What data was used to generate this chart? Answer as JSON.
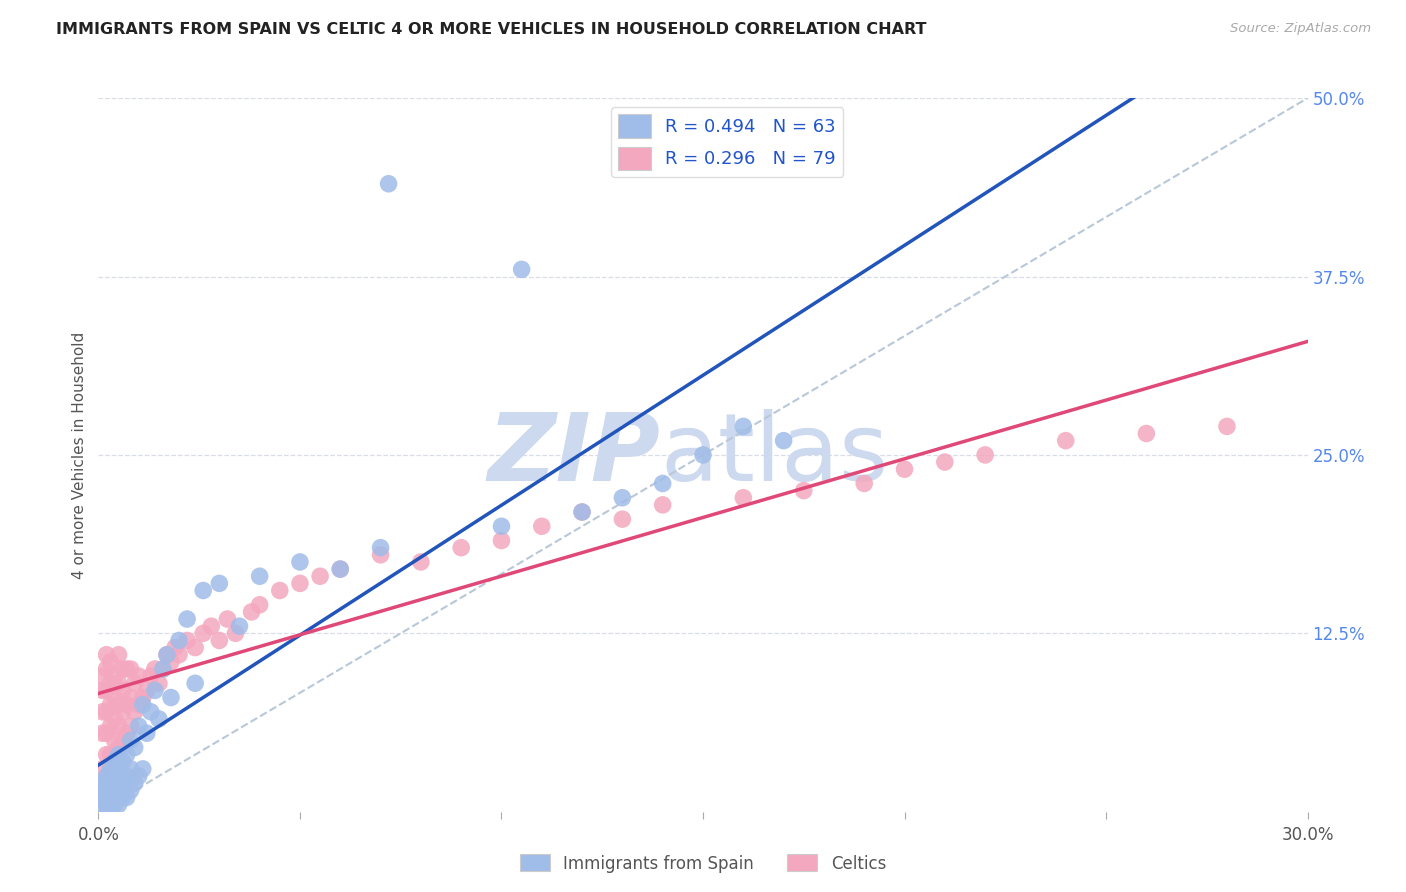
{
  "title": "IMMIGRANTS FROM SPAIN VS CELTIC 4 OR MORE VEHICLES IN HOUSEHOLD CORRELATION CHART",
  "source": "Source: ZipAtlas.com",
  "ylabel": "4 or more Vehicles in Household",
  "xlim": [
    0.0,
    0.3
  ],
  "ylim": [
    0.0,
    0.5
  ],
  "legend_label_blue": "Immigrants from Spain",
  "legend_label_pink": "Celtics",
  "blue_color": "#a0bce8",
  "pink_color": "#f4a8bf",
  "blue_line_color": "#2255bb",
  "pink_line_color": "#e04878",
  "dashed_line_color": "#b8c8d8",
  "right_tick_color": "#5588ee",
  "grid_color": "#d8dde8",
  "spain_x": [
    0.001,
    0.001,
    0.001,
    0.001,
    0.002,
    0.002,
    0.002,
    0.002,
    0.002,
    0.003,
    0.003,
    0.003,
    0.003,
    0.004,
    0.004,
    0.004,
    0.004,
    0.005,
    0.005,
    0.005,
    0.005,
    0.005,
    0.006,
    0.006,
    0.006,
    0.007,
    0.007,
    0.007,
    0.008,
    0.008,
    0.008,
    0.009,
    0.009,
    0.01,
    0.01,
    0.011,
    0.011,
    0.012,
    0.013,
    0.014,
    0.015,
    0.016,
    0.017,
    0.018,
    0.02,
    0.022,
    0.024,
    0.026,
    0.03,
    0.035,
    0.04,
    0.05,
    0.06,
    0.07,
    0.072,
    0.1,
    0.105,
    0.12,
    0.13,
    0.14,
    0.15,
    0.16,
    0.17
  ],
  "spain_y": [
    0.005,
    0.01,
    0.015,
    0.02,
    0.005,
    0.01,
    0.015,
    0.02,
    0.025,
    0.005,
    0.01,
    0.015,
    0.03,
    0.005,
    0.015,
    0.025,
    0.035,
    0.005,
    0.01,
    0.02,
    0.03,
    0.04,
    0.01,
    0.02,
    0.035,
    0.01,
    0.025,
    0.04,
    0.015,
    0.03,
    0.05,
    0.02,
    0.045,
    0.025,
    0.06,
    0.03,
    0.075,
    0.055,
    0.07,
    0.085,
    0.065,
    0.1,
    0.11,
    0.08,
    0.12,
    0.135,
    0.09,
    0.155,
    0.16,
    0.13,
    0.165,
    0.175,
    0.17,
    0.185,
    0.44,
    0.2,
    0.38,
    0.21,
    0.22,
    0.23,
    0.25,
    0.27,
    0.26
  ],
  "celtic_x": [
    0.001,
    0.001,
    0.001,
    0.001,
    0.001,
    0.002,
    0.002,
    0.002,
    0.002,
    0.002,
    0.002,
    0.003,
    0.003,
    0.003,
    0.003,
    0.003,
    0.004,
    0.004,
    0.004,
    0.004,
    0.005,
    0.005,
    0.005,
    0.005,
    0.005,
    0.006,
    0.006,
    0.006,
    0.006,
    0.007,
    0.007,
    0.007,
    0.008,
    0.008,
    0.008,
    0.009,
    0.009,
    0.01,
    0.01,
    0.011,
    0.012,
    0.013,
    0.014,
    0.015,
    0.016,
    0.017,
    0.018,
    0.019,
    0.02,
    0.022,
    0.024,
    0.026,
    0.028,
    0.03,
    0.032,
    0.034,
    0.038,
    0.04,
    0.045,
    0.05,
    0.055,
    0.06,
    0.07,
    0.08,
    0.09,
    0.1,
    0.11,
    0.12,
    0.13,
    0.14,
    0.16,
    0.175,
    0.19,
    0.2,
    0.21,
    0.22,
    0.24,
    0.26,
    0.28
  ],
  "celtic_y": [
    0.03,
    0.055,
    0.07,
    0.085,
    0.095,
    0.04,
    0.055,
    0.07,
    0.085,
    0.1,
    0.11,
    0.04,
    0.06,
    0.075,
    0.09,
    0.105,
    0.05,
    0.065,
    0.08,
    0.095,
    0.045,
    0.06,
    0.075,
    0.09,
    0.11,
    0.05,
    0.07,
    0.085,
    0.1,
    0.055,
    0.075,
    0.1,
    0.06,
    0.08,
    0.1,
    0.07,
    0.09,
    0.075,
    0.095,
    0.08,
    0.085,
    0.095,
    0.1,
    0.09,
    0.1,
    0.11,
    0.105,
    0.115,
    0.11,
    0.12,
    0.115,
    0.125,
    0.13,
    0.12,
    0.135,
    0.125,
    0.14,
    0.145,
    0.155,
    0.16,
    0.165,
    0.17,
    0.18,
    0.175,
    0.185,
    0.19,
    0.2,
    0.21,
    0.205,
    0.215,
    0.22,
    0.225,
    0.23,
    0.24,
    0.245,
    0.25,
    0.26,
    0.265,
    0.27
  ]
}
